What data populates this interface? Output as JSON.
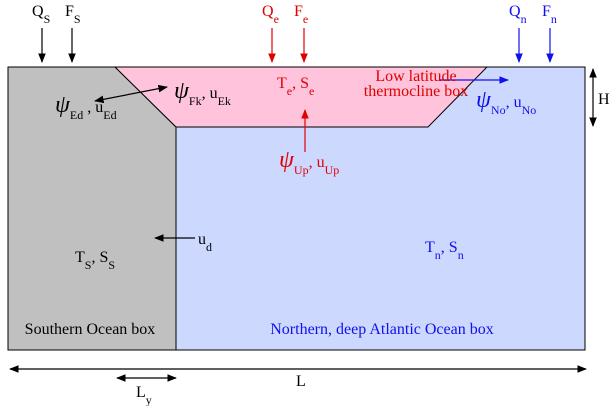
{
  "fluxes": {
    "south": {
      "heat": {
        "symbol": "Q",
        "sub": "S"
      },
      "fresh": {
        "symbol": "F",
        "sub": "S"
      }
    },
    "equator": {
      "heat": {
        "symbol": "Q",
        "sub": "e"
      },
      "fresh": {
        "symbol": "F",
        "sub": "e"
      }
    },
    "north": {
      "heat": {
        "symbol": "Q",
        "sub": "n"
      },
      "fresh": {
        "symbol": "F",
        "sub": "n"
      }
    }
  },
  "boxes": {
    "southern": {
      "name": "Southern Ocean box",
      "temp": {
        "symbol": "T",
        "sub": "S"
      },
      "separator": ", ",
      "salt": {
        "symbol": "S",
        "sub": "S"
      }
    },
    "low_latitude": {
      "name_lines": [
        "Low latitude",
        "thermocline box"
      ],
      "temp": {
        "symbol": "T",
        "sub": "e"
      },
      "separator": ", ",
      "salt": {
        "symbol": "S",
        "sub": "e"
      }
    },
    "northern": {
      "name": "Northern, deep Atlantic Ocean box",
      "temp": {
        "symbol": "T",
        "sub": "n"
      },
      "separator": ", ",
      "salt": {
        "symbol": "S",
        "sub": "n"
      }
    }
  },
  "transports": {
    "eddy": {
      "psi": {
        "symbol": "ψ",
        "sub": "Ed"
      },
      "separator": " , ",
      "velocity": {
        "symbol": "u",
        "sub": "Ed"
      }
    },
    "ekman": {
      "psi": {
        "symbol": "ψ",
        "sub": "Fk"
      },
      "separator": ", ",
      "velocity": {
        "symbol": "u",
        "sub": "Ek"
      }
    },
    "upwelling": {
      "psi": {
        "symbol": "ψ",
        "sub": "Up"
      },
      "separator": ", ",
      "velocity": {
        "symbol": "u",
        "sub": "Up"
      }
    },
    "north": {
      "psi": {
        "symbol": "ψ",
        "sub": "No"
      },
      "separator": ", ",
      "velocity": {
        "symbol": "u",
        "sub": "No"
      }
    },
    "deep": {
      "velocity": {
        "symbol": "u",
        "sub": "d"
      }
    }
  },
  "dimensions": {
    "height": "H",
    "length": "L",
    "southern_width": {
      "symbol": "L",
      "sub": "y"
    }
  }
}
